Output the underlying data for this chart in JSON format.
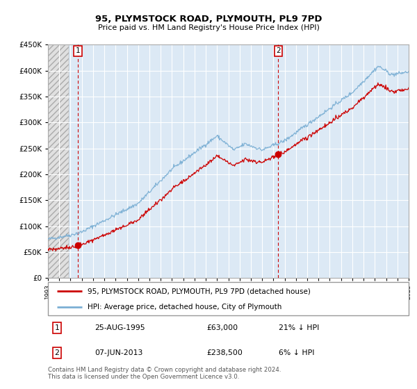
{
  "title": "95, PLYMSTOCK ROAD, PLYMOUTH, PL9 7PD",
  "subtitle": "Price paid vs. HM Land Registry's House Price Index (HPI)",
  "sale1_label": "25-AUG-1995",
  "sale1_price": 63000,
  "sale1_year": 1995.648,
  "sale1_hpi_pct": "21% ↓ HPI",
  "sale2_label": "07-JUN-2013",
  "sale2_price": 238500,
  "sale2_year": 2013.436,
  "sale2_hpi_pct": "6% ↓ HPI",
  "legend_line1": "95, PLYMSTOCK ROAD, PLYMOUTH, PL9 7PD (detached house)",
  "legend_line2": "HPI: Average price, detached house, City of Plymouth",
  "footer": "Contains HM Land Registry data © Crown copyright and database right 2024.\nThis data is licensed under the Open Government Licence v3.0.",
  "bg_color": "#dce9f5",
  "grid_color": "#ffffff",
  "red_line_color": "#cc0000",
  "blue_line_color": "#7bafd4",
  "dot_color": "#cc0000",
  "ylim": [
    0,
    450000
  ],
  "yticks": [
    0,
    50000,
    100000,
    150000,
    200000,
    250000,
    300000,
    350000,
    400000,
    450000
  ],
  "xmin": 1993,
  "xmax": 2025
}
